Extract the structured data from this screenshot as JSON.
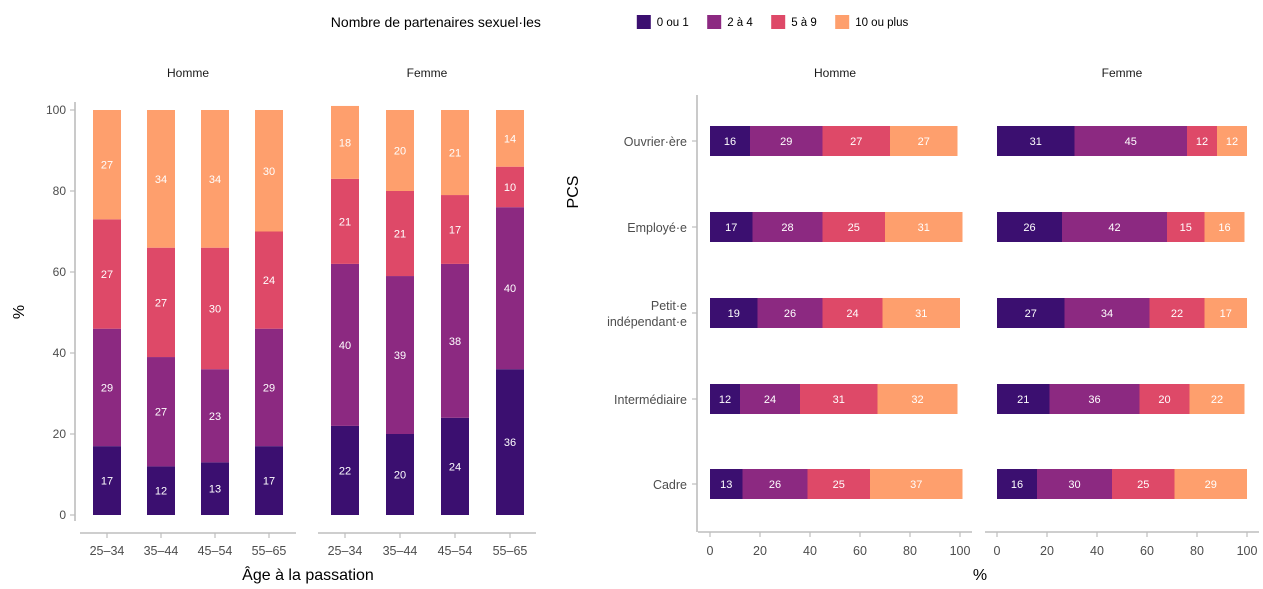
{
  "legend": {
    "title": "Nombre de partenaires sexuel·les",
    "placement": "top",
    "items": [
      {
        "label": "0 ou 1",
        "color": "#3b0f70"
      },
      {
        "label": "2 à 4",
        "color": "#8c2981"
      },
      {
        "label": "5 à 9",
        "color": "#de4968"
      },
      {
        "label": "10 ou plus",
        "color": "#fe9f6d"
      }
    ]
  },
  "chart_data": [
    {
      "type": "bar",
      "stacked": true,
      "orientation": "vertical",
      "xlabel": "Âge à la passation",
      "ylabel": "%",
      "ylim": [
        0,
        100
      ],
      "yticks": [
        "0",
        "20",
        "40",
        "60",
        "80",
        "100"
      ],
      "facets": [
        {
          "name": "Homme",
          "categories": [
            "25–34",
            "35–44",
            "45–54",
            "55–65"
          ],
          "series": [
            {
              "name": "0 ou 1",
              "values": [
                17,
                12,
                13,
                17
              ]
            },
            {
              "name": "2 à 4",
              "values": [
                29,
                27,
                23,
                29
              ]
            },
            {
              "name": "5 à 9",
              "values": [
                27,
                27,
                30,
                24
              ]
            },
            {
              "name": "10 ou plus",
              "values": [
                27,
                34,
                34,
                30
              ]
            }
          ]
        },
        {
          "name": "Femme",
          "categories": [
            "25–34",
            "35–44",
            "45–54",
            "55–65"
          ],
          "series": [
            {
              "name": "0 ou 1",
              "values": [
                22,
                20,
                24,
                36
              ]
            },
            {
              "name": "2 à 4",
              "values": [
                40,
                39,
                38,
                40
              ]
            },
            {
              "name": "5 à 9",
              "values": [
                21,
                21,
                17,
                10
              ]
            },
            {
              "name": "10 ou plus",
              "values": [
                18,
                20,
                21,
                14
              ]
            }
          ]
        }
      ]
    },
    {
      "type": "bar",
      "stacked": true,
      "orientation": "horizontal",
      "xlabel": "%",
      "ylabel": "PCS",
      "xlim": [
        0,
        100
      ],
      "xticks": [
        "0",
        "20",
        "40",
        "60",
        "80",
        "100"
      ],
      "facets": [
        {
          "name": "Homme",
          "categories": [
            "Ouvrier·ère",
            "Employé·e",
            "Petit·e indépendant·e",
            "Intermédiaire",
            "Cadre"
          ],
          "category_lines": [
            [
              "Ouvrier·ère"
            ],
            [
              "Employé·e"
            ],
            [
              "Petit·e",
              "indépendant·e"
            ],
            [
              "Intermédiaire"
            ],
            [
              "Cadre"
            ]
          ],
          "series": [
            {
              "name": "0 ou 1",
              "values": [
                16,
                17,
                19,
                12,
                13
              ]
            },
            {
              "name": "2 à 4",
              "values": [
                29,
                28,
                26,
                24,
                26
              ]
            },
            {
              "name": "5 à 9",
              "values": [
                27,
                25,
                24,
                31,
                25
              ]
            },
            {
              "name": "10 ou plus",
              "values": [
                27,
                31,
                31,
                32,
                37
              ]
            }
          ]
        },
        {
          "name": "Femme",
          "categories": [
            "Ouvrier·ère",
            "Employé·e",
            "Petit·e indépendant·e",
            "Intermédiaire",
            "Cadre"
          ],
          "category_lines": [
            [
              "Ouvrier·ère"
            ],
            [
              "Employé·e"
            ],
            [
              "Petit·e",
              "indépendant·e"
            ],
            [
              "Intermédiaire"
            ],
            [
              "Cadre"
            ]
          ],
          "series": [
            {
              "name": "0 ou 1",
              "values": [
                31,
                26,
                27,
                21,
                16
              ]
            },
            {
              "name": "2 à 4",
              "values": [
                45,
                42,
                34,
                36,
                30
              ]
            },
            {
              "name": "5 à 9",
              "values": [
                12,
                15,
                22,
                20,
                25
              ]
            },
            {
              "name": "10 ou plus",
              "values": [
                12,
                16,
                17,
                22,
                29
              ]
            }
          ]
        }
      ]
    }
  ]
}
